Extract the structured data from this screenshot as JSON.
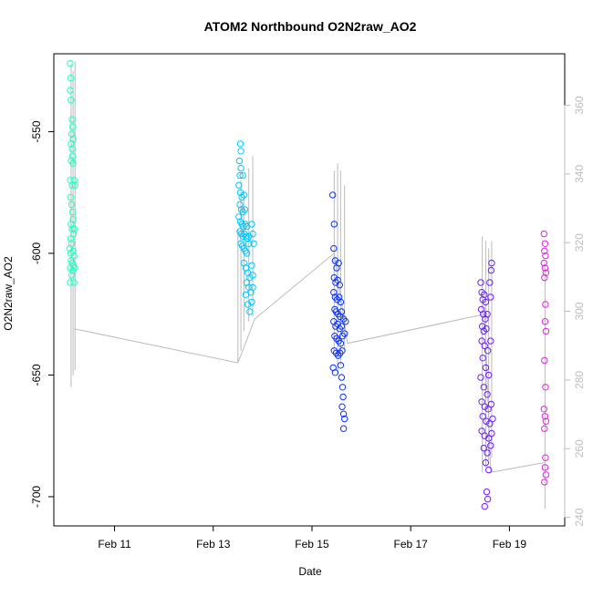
{
  "chart_data": {
    "type": "scatter",
    "title": "ATOM2 Northbound O2N2raw_AO2",
    "xlabel": "Date",
    "ylabel": "O2N2raw_AO2",
    "x_ticks": [
      "Feb 11",
      "Feb 13",
      "Feb 15",
      "Feb 17",
      "Feb 19"
    ],
    "x_tick_days": [
      11,
      13,
      15,
      17,
      19
    ],
    "xlim_days": [
      9.77,
      20.12
    ],
    "y_left_ticks": [
      -550,
      -600,
      -650,
      -700
    ],
    "ylim_left": [
      -712,
      -518
    ],
    "y_right_ticks": [
      240,
      260,
      280,
      300,
      320,
      340,
      360
    ],
    "ylim_right": [
      237.5,
      375
    ],
    "grid": false,
    "legend": "none",
    "colors": {
      "line": "#bbbbbb",
      "axis": "#000000",
      "right_axis": "#bdbdbd",
      "clusters": [
        "#1effc3",
        "#00c8ff",
        "#0a32ff",
        "#6e1eff",
        "#e61ee6"
      ]
    },
    "series": [
      {
        "values": [
          {
            "x": 10.1,
            "y": -522
          },
          {
            "x": 10.11,
            "y": -528
          },
          {
            "x": 10.1,
            "y": -533
          },
          {
            "x": 10.12,
            "y": -537
          },
          {
            "x": 10.14,
            "y": -545
          },
          {
            "x": 10.15,
            "y": -548
          },
          {
            "x": 10.13,
            "y": -551
          },
          {
            "x": 10.16,
            "y": -553
          },
          {
            "x": 10.12,
            "y": -555
          },
          {
            "x": 10.14,
            "y": -557
          },
          {
            "x": 10.15,
            "y": -560
          },
          {
            "x": 10.12,
            "y": -562
          },
          {
            "x": 10.16,
            "y": -563
          },
          {
            "x": 10.1,
            "y": -570
          },
          {
            "x": 10.14,
            "y": -572
          },
          {
            "x": 10.18,
            "y": -570
          },
          {
            "x": 10.2,
            "y": -572
          },
          {
            "x": 10.11,
            "y": -577
          },
          {
            "x": 10.13,
            "y": -580
          },
          {
            "x": 10.15,
            "y": -583
          },
          {
            "x": 10.16,
            "y": -586
          },
          {
            "x": 10.12,
            "y": -588
          },
          {
            "x": 10.14,
            "y": -590
          },
          {
            "x": 10.17,
            "y": -592
          },
          {
            "x": 10.19,
            "y": -590
          },
          {
            "x": 10.11,
            "y": -594
          },
          {
            "x": 10.13,
            "y": -596
          },
          {
            "x": 10.09,
            "y": -598
          },
          {
            "x": 10.11,
            "y": -600
          },
          {
            "x": 10.16,
            "y": -599
          },
          {
            "x": 10.18,
            "y": -601
          },
          {
            "x": 10.12,
            "y": -603
          },
          {
            "x": 10.14,
            "y": -604
          },
          {
            "x": 10.1,
            "y": -606
          },
          {
            "x": 10.15,
            "y": -607
          },
          {
            "x": 10.17,
            "y": -605
          },
          {
            "x": 10.19,
            "y": -606
          },
          {
            "x": 10.13,
            "y": -609
          },
          {
            "x": 10.1,
            "y": -612
          },
          {
            "x": 10.18,
            "y": -612
          }
        ]
      },
      {
        "values": [
          {
            "x": 13.55,
            "y": -555
          },
          {
            "x": 13.56,
            "y": -558
          },
          {
            "x": 13.53,
            "y": -562
          },
          {
            "x": 13.56,
            "y": -565
          },
          {
            "x": 13.54,
            "y": -568
          },
          {
            "x": 13.6,
            "y": -568
          },
          {
            "x": 13.52,
            "y": -572
          },
          {
            "x": 13.55,
            "y": -575
          },
          {
            "x": 13.58,
            "y": -577
          },
          {
            "x": 13.62,
            "y": -576
          },
          {
            "x": 13.54,
            "y": -580
          },
          {
            "x": 13.57,
            "y": -582
          },
          {
            "x": 13.6,
            "y": -583
          },
          {
            "x": 13.64,
            "y": -582
          },
          {
            "x": 13.52,
            "y": -585
          },
          {
            "x": 13.55,
            "y": -587
          },
          {
            "x": 13.58,
            "y": -588
          },
          {
            "x": 13.61,
            "y": -589
          },
          {
            "x": 13.65,
            "y": -588
          },
          {
            "x": 13.68,
            "y": -589
          },
          {
            "x": 13.54,
            "y": -591
          },
          {
            "x": 13.57,
            "y": -592
          },
          {
            "x": 13.6,
            "y": -593
          },
          {
            "x": 13.63,
            "y": -592
          },
          {
            "x": 13.66,
            "y": -593
          },
          {
            "x": 13.69,
            "y": -594
          },
          {
            "x": 13.72,
            "y": -593
          },
          {
            "x": 13.56,
            "y": -596
          },
          {
            "x": 13.59,
            "y": -597
          },
          {
            "x": 13.62,
            "y": -598
          },
          {
            "x": 13.65,
            "y": -599
          },
          {
            "x": 13.68,
            "y": -600
          },
          {
            "x": 13.72,
            "y": -596
          },
          {
            "x": 13.78,
            "y": -588
          },
          {
            "x": 13.8,
            "y": -592
          },
          {
            "x": 13.82,
            "y": -596
          },
          {
            "x": 13.62,
            "y": -604
          },
          {
            "x": 13.66,
            "y": -606
          },
          {
            "x": 13.7,
            "y": -608
          },
          {
            "x": 13.74,
            "y": -610
          },
          {
            "x": 13.78,
            "y": -605
          },
          {
            "x": 13.8,
            "y": -609
          },
          {
            "x": 13.68,
            "y": -612
          },
          {
            "x": 13.72,
            "y": -614
          },
          {
            "x": 13.76,
            "y": -616
          },
          {
            "x": 13.8,
            "y": -614
          },
          {
            "x": 13.66,
            "y": -617
          },
          {
            "x": 13.7,
            "y": -621
          },
          {
            "x": 13.74,
            "y": -624
          },
          {
            "x": 13.78,
            "y": -620
          }
        ]
      },
      {
        "values": [
          {
            "x": 15.42,
            "y": -576
          },
          {
            "x": 15.45,
            "y": -588
          },
          {
            "x": 15.44,
            "y": -598
          },
          {
            "x": 15.47,
            "y": -603
          },
          {
            "x": 15.5,
            "y": -606
          },
          {
            "x": 15.54,
            "y": -604
          },
          {
            "x": 15.45,
            "y": -610
          },
          {
            "x": 15.48,
            "y": -612
          },
          {
            "x": 15.52,
            "y": -611
          },
          {
            "x": 15.56,
            "y": -613
          },
          {
            "x": 15.44,
            "y": -616
          },
          {
            "x": 15.47,
            "y": -618
          },
          {
            "x": 15.51,
            "y": -619
          },
          {
            "x": 15.55,
            "y": -618
          },
          {
            "x": 15.58,
            "y": -620
          },
          {
            "x": 15.46,
            "y": -623
          },
          {
            "x": 15.49,
            "y": -624
          },
          {
            "x": 15.53,
            "y": -625
          },
          {
            "x": 15.57,
            "y": -626
          },
          {
            "x": 15.6,
            "y": -624
          },
          {
            "x": 15.44,
            "y": -628
          },
          {
            "x": 15.48,
            "y": -630
          },
          {
            "x": 15.52,
            "y": -629
          },
          {
            "x": 15.56,
            "y": -631
          },
          {
            "x": 15.6,
            "y": -630
          },
          {
            "x": 15.64,
            "y": -627
          },
          {
            "x": 15.68,
            "y": -628
          },
          {
            "x": 15.46,
            "y": -634
          },
          {
            "x": 15.5,
            "y": -635
          },
          {
            "x": 15.54,
            "y": -636
          },
          {
            "x": 15.58,
            "y": -637
          },
          {
            "x": 15.62,
            "y": -634
          },
          {
            "x": 15.66,
            "y": -633
          },
          {
            "x": 15.45,
            "y": -640
          },
          {
            "x": 15.49,
            "y": -641
          },
          {
            "x": 15.53,
            "y": -642
          },
          {
            "x": 15.57,
            "y": -641
          },
          {
            "x": 15.61,
            "y": -640
          },
          {
            "x": 15.43,
            "y": -647
          },
          {
            "x": 15.47,
            "y": -649
          },
          {
            "x": 15.58,
            "y": -646
          },
          {
            "x": 15.6,
            "y": -651
          },
          {
            "x": 15.62,
            "y": -655
          },
          {
            "x": 15.63,
            "y": -659
          },
          {
            "x": 15.61,
            "y": -663
          },
          {
            "x": 15.64,
            "y": -666
          },
          {
            "x": 15.66,
            "y": -668
          },
          {
            "x": 15.64,
            "y": -672
          }
        ]
      },
      {
        "values": [
          {
            "x": 18.42,
            "y": -612
          },
          {
            "x": 18.44,
            "y": -616
          },
          {
            "x": 18.46,
            "y": -619
          },
          {
            "x": 18.49,
            "y": -617
          },
          {
            "x": 18.52,
            "y": -620
          },
          {
            "x": 18.43,
            "y": -623
          },
          {
            "x": 18.47,
            "y": -625
          },
          {
            "x": 18.51,
            "y": -627
          },
          {
            "x": 18.55,
            "y": -625
          },
          {
            "x": 18.6,
            "y": -612
          },
          {
            "x": 18.62,
            "y": -618
          },
          {
            "x": 18.64,
            "y": -604
          },
          {
            "x": 18.63,
            "y": -607
          },
          {
            "x": 18.45,
            "y": -630
          },
          {
            "x": 18.48,
            "y": -632
          },
          {
            "x": 18.53,
            "y": -631
          },
          {
            "x": 18.44,
            "y": -636
          },
          {
            "x": 18.5,
            "y": -638
          },
          {
            "x": 18.56,
            "y": -640
          },
          {
            "x": 18.62,
            "y": -636
          },
          {
            "x": 18.46,
            "y": -643
          },
          {
            "x": 18.52,
            "y": -647
          },
          {
            "x": 18.58,
            "y": -650
          },
          {
            "x": 18.42,
            "y": -651
          },
          {
            "x": 18.48,
            "y": -655
          },
          {
            "x": 18.55,
            "y": -658
          },
          {
            "x": 18.44,
            "y": -661
          },
          {
            "x": 18.5,
            "y": -663
          },
          {
            "x": 18.57,
            "y": -664
          },
          {
            "x": 18.63,
            "y": -662
          },
          {
            "x": 18.46,
            "y": -667
          },
          {
            "x": 18.53,
            "y": -669
          },
          {
            "x": 18.6,
            "y": -670
          },
          {
            "x": 18.66,
            "y": -668
          },
          {
            "x": 18.44,
            "y": -673
          },
          {
            "x": 18.5,
            "y": -675
          },
          {
            "x": 18.58,
            "y": -676
          },
          {
            "x": 18.64,
            "y": -674
          },
          {
            "x": 18.48,
            "y": -680
          },
          {
            "x": 18.55,
            "y": -682
          },
          {
            "x": 18.62,
            "y": -679
          },
          {
            "x": 18.52,
            "y": -686
          },
          {
            "x": 18.58,
            "y": -689
          },
          {
            "x": 18.54,
            "y": -698
          },
          {
            "x": 18.5,
            "y": -704
          },
          {
            "x": 18.56,
            "y": -701
          }
        ]
      },
      {
        "values": [
          {
            "x": 19.7,
            "y": -592
          },
          {
            "x": 19.72,
            "y": -596
          },
          {
            "x": 19.71,
            "y": -599
          },
          {
            "x": 19.73,
            "y": -601
          },
          {
            "x": 19.7,
            "y": -604
          },
          {
            "x": 19.72,
            "y": -606
          },
          {
            "x": 19.74,
            "y": -608
          },
          {
            "x": 19.71,
            "y": -610
          },
          {
            "x": 19.73,
            "y": -621
          },
          {
            "x": 19.72,
            "y": -628
          },
          {
            "x": 19.74,
            "y": -632
          },
          {
            "x": 19.71,
            "y": -644
          },
          {
            "x": 19.73,
            "y": -655
          },
          {
            "x": 19.7,
            "y": -664
          },
          {
            "x": 19.72,
            "y": -667
          },
          {
            "x": 19.74,
            "y": -669
          },
          {
            "x": 19.71,
            "y": -672
          },
          {
            "x": 19.73,
            "y": -684
          },
          {
            "x": 19.72,
            "y": -688
          },
          {
            "x": 19.74,
            "y": -691
          },
          {
            "x": 19.71,
            "y": -694
          }
        ]
      }
    ],
    "line_path": [
      {
        "x": 10.18,
        "y": -631
      },
      {
        "x": 13.5,
        "y": -645
      },
      {
        "x": 13.84,
        "y": -627
      },
      {
        "x": 15.45,
        "y": -600
      },
      {
        "x": 15.72,
        "y": -637
      },
      {
        "x": 18.5,
        "y": -625
      },
      {
        "x": 18.62,
        "y": -690
      },
      {
        "x": 19.7,
        "y": -686
      }
    ],
    "line_spikes": [
      {
        "x": 10.12,
        "y_low": -655,
        "y_high": -522
      },
      {
        "x": 10.16,
        "y_low": -650,
        "y_high": -525
      },
      {
        "x": 10.2,
        "y_low": -648,
        "y_high": -521
      },
      {
        "x": 13.5,
        "y_low": -645,
        "y_high": -590
      },
      {
        "x": 13.56,
        "y_low": -640,
        "y_high": -570
      },
      {
        "x": 13.62,
        "y_low": -632,
        "y_high": -575
      },
      {
        "x": 13.72,
        "y_low": -628,
        "y_high": -565
      },
      {
        "x": 13.8,
        "y_low": -626,
        "y_high": -560
      },
      {
        "x": 15.45,
        "y_low": -640,
        "y_high": -566
      },
      {
        "x": 15.52,
        "y_low": -650,
        "y_high": -563
      },
      {
        "x": 15.58,
        "y_low": -646,
        "y_high": -566
      },
      {
        "x": 15.66,
        "y_low": -640,
        "y_high": -572
      },
      {
        "x": 18.45,
        "y_low": -690,
        "y_high": -593
      },
      {
        "x": 18.52,
        "y_low": -688,
        "y_high": -595
      },
      {
        "x": 18.58,
        "y_low": -685,
        "y_high": -598
      },
      {
        "x": 18.64,
        "y_low": -684,
        "y_high": -595
      },
      {
        "x": 19.72,
        "y_low": -705,
        "y_high": -604
      }
    ]
  }
}
